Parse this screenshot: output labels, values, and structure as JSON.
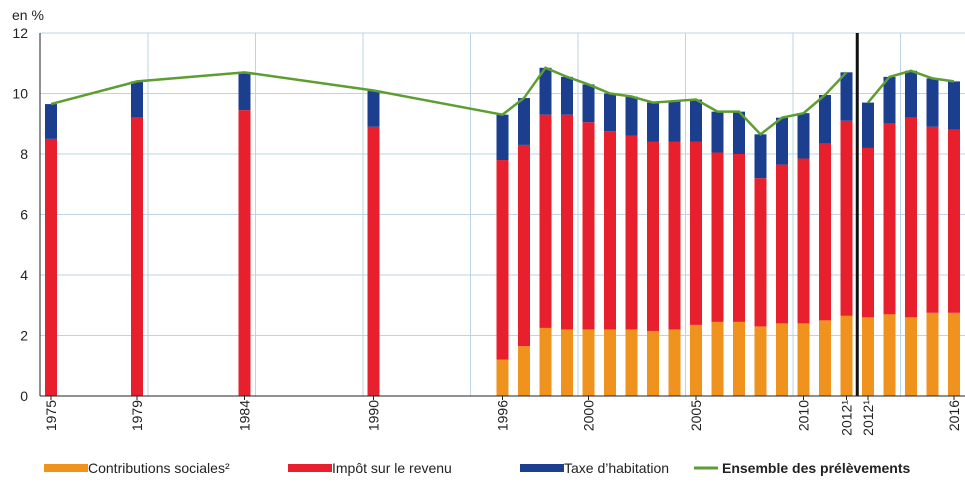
{
  "chart_data": {
    "type": "bar",
    "y_label": "en %",
    "categories": [
      "1975",
      "1979",
      "1984",
      "1990",
      "1996",
      null,
      null,
      null,
      "2000",
      null,
      null,
      null,
      null,
      "2005",
      null,
      null,
      null,
      null,
      "2010",
      null,
      "2012¹",
      "2012¹",
      null,
      null,
      null,
      "2016"
    ],
    "stacked": true,
    "ylim": [
      0,
      12
    ],
    "yticks": [
      0,
      2,
      4,
      6,
      8,
      10,
      12
    ],
    "grid": true,
    "series": [
      {
        "name": "Contributions sociales²",
        "color": "#f0921e",
        "values": [
          0,
          0,
          0,
          0,
          1.2,
          1.65,
          2.25,
          2.2,
          2.2,
          2.2,
          2.2,
          2.15,
          2.2,
          2.35,
          2.45,
          2.45,
          2.3,
          2.4,
          2.4,
          2.5,
          2.65,
          2.6,
          2.7,
          2.6,
          2.75,
          2.75
        ]
      },
      {
        "name": "Impôt sur le revenu",
        "color": "#e8202e",
        "values": [
          8.5,
          9.2,
          9.45,
          8.9,
          6.6,
          6.65,
          7.05,
          7.1,
          6.85,
          6.55,
          6.4,
          6.25,
          6.2,
          6.05,
          5.6,
          5.55,
          4.9,
          5.25,
          5.45,
          5.85,
          6.45,
          5.6,
          6.3,
          6.6,
          6.15,
          6.05
        ]
      },
      {
        "name": "Taxe d’habitation",
        "color": "#1b3e8f",
        "values": [
          1.15,
          1.2,
          1.25,
          1.2,
          1.5,
          1.55,
          1.55,
          1.25,
          1.25,
          1.25,
          1.3,
          1.3,
          1.35,
          1.4,
          1.35,
          1.4,
          1.45,
          1.55,
          1.5,
          1.6,
          1.6,
          1.5,
          1.55,
          1.55,
          1.6,
          1.6
        ]
      },
      {
        "name": "Ensemble des prélèvements",
        "type": "line",
        "color": "#5c9e31",
        "values": [
          9.65,
          10.4,
          10.7,
          10.1,
          9.3,
          9.85,
          10.85,
          10.55,
          10.3,
          10.0,
          9.9,
          9.7,
          9.75,
          9.8,
          9.4,
          9.4,
          8.65,
          9.2,
          9.35,
          9.95,
          10.7,
          9.7,
          10.55,
          10.75,
          10.5,
          10.4
        ]
      }
    ]
  }
}
